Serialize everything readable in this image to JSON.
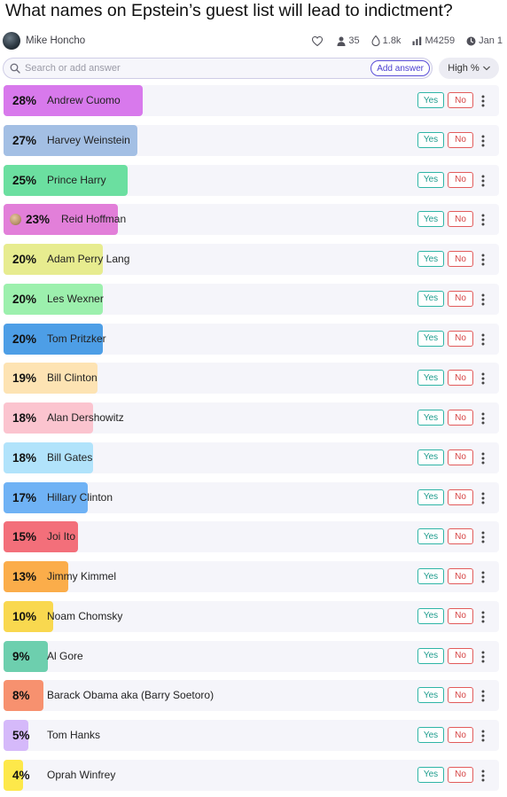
{
  "question": {
    "title": "What names on Epstein’s guest list will lead to indictment?"
  },
  "meta": {
    "author": "Mike Honcho",
    "traders": "35",
    "volume": "1.8k",
    "liquidity": "M4259",
    "close_date": "Jan 1",
    "icons": [
      "heart-icon",
      "user-icon",
      "droplet-icon",
      "bar-chart-icon",
      "clock-icon"
    ]
  },
  "search": {
    "placeholder": "Search or add answer",
    "add_label": "Add answer"
  },
  "sort": {
    "label": "High %"
  },
  "buttons": {
    "yes": "Yes",
    "no": "No"
  },
  "answers": [
    {
      "pct": "28%",
      "prob": 0.28,
      "name": "Andrew Cuomo",
      "color": "#d879ec"
    },
    {
      "pct": "27%",
      "prob": 0.27,
      "name": "Harvey Weinstein",
      "color": "#a3bfe4"
    },
    {
      "pct": "25%",
      "prob": 0.25,
      "name": "Prince Harry",
      "color": "#6bdfa0"
    },
    {
      "pct": "23%",
      "prob": 0.23,
      "name": "Reid Hoffman",
      "color": "#e27fd9",
      "avatar": true
    },
    {
      "pct": "20%",
      "prob": 0.2,
      "name": "Adam Perry Lang",
      "color": "#e7ec8f"
    },
    {
      "pct": "20%",
      "prob": 0.2,
      "name": "Les Wexner",
      "color": "#9cf0ad"
    },
    {
      "pct": "20%",
      "prob": 0.2,
      "name": "Tom Pritzker",
      "color": "#4d9ee6"
    },
    {
      "pct": "19%",
      "prob": 0.19,
      "name": "Bill Clinton",
      "color": "#fde3b3"
    },
    {
      "pct": "18%",
      "prob": 0.18,
      "name": "Alan Dershowitz",
      "color": "#fbc4cf"
    },
    {
      "pct": "18%",
      "prob": 0.18,
      "name": "Bill Gates",
      "color": "#b1e3fb"
    },
    {
      "pct": "17%",
      "prob": 0.17,
      "name": "Hillary Clinton",
      "color": "#6fb2f5"
    },
    {
      "pct": "15%",
      "prob": 0.15,
      "name": "Joi Ito",
      "color": "#f36f7a"
    },
    {
      "pct": "13%",
      "prob": 0.13,
      "name": "Jimmy Kimmel",
      "color": "#fbad4a"
    },
    {
      "pct": "10%",
      "prob": 0.1,
      "name": "Noam Chomsky",
      "color": "#f9d84f"
    },
    {
      "pct": "9%",
      "prob": 0.09,
      "name": "Al Gore",
      "color": "#6dcfae"
    },
    {
      "pct": "8%",
      "prob": 0.08,
      "name": "Barack Obama aka (Barry Soetoro)",
      "color": "#f7916f"
    },
    {
      "pct": "5%",
      "prob": 0.05,
      "name": "Tom Hanks",
      "color": "#d5b9fa"
    },
    {
      "pct": "4%",
      "prob": 0.04,
      "name": "Oprah Winfrey",
      "color": "#fde84a"
    }
  ]
}
